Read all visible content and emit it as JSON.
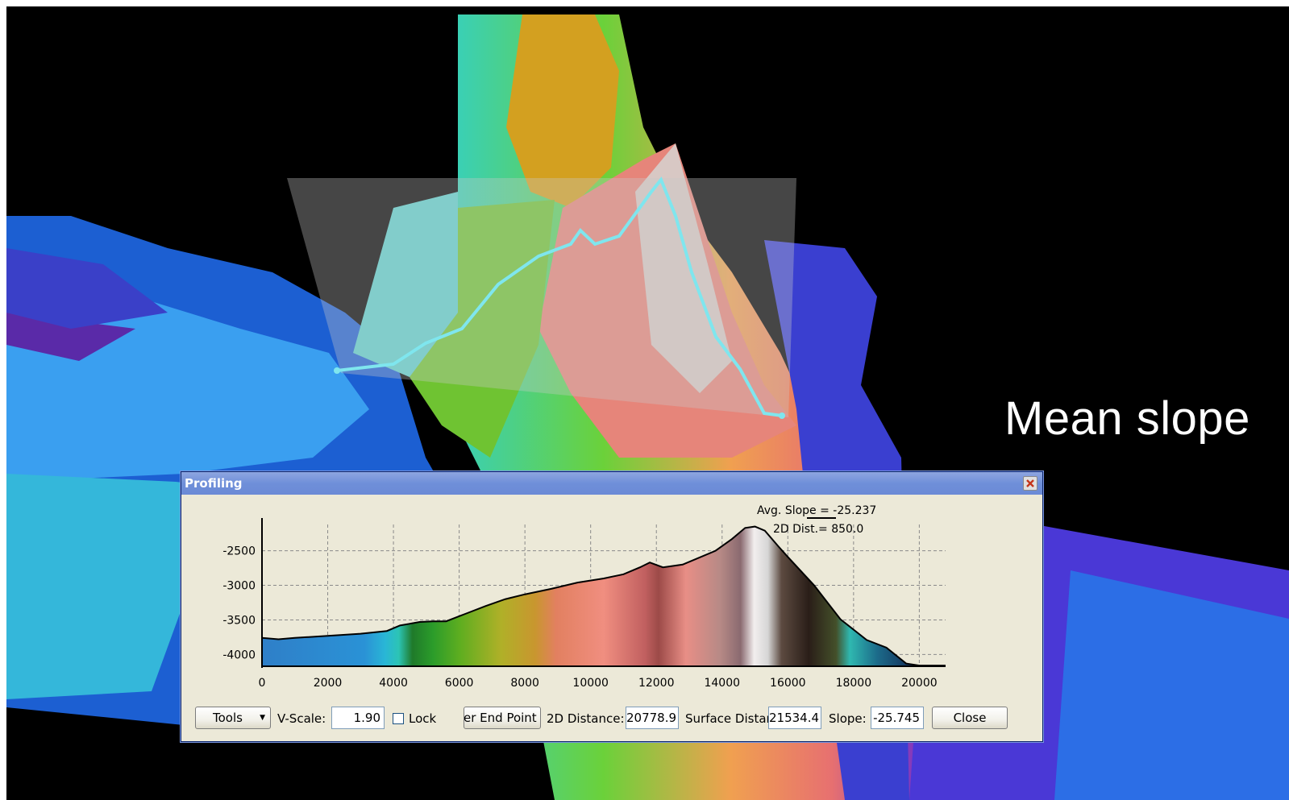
{
  "slide": {
    "caption": "Mean slope"
  },
  "dialog": {
    "title": "Profiling",
    "close_icon": "close-icon"
  },
  "profile_chart": {
    "annotation_avg_slope": "Avg. Slope = -25.237",
    "annotation_2d_dist": "2D Dist.= 850.0",
    "y_ticks": [
      "-2500",
      "-3000",
      "-3500",
      "-4000"
    ],
    "x_ticks": [
      "0",
      "2000",
      "4000",
      "6000",
      "8000",
      "10000",
      "12000",
      "14000",
      "16000",
      "18000",
      "20000"
    ]
  },
  "chart_data": {
    "type": "area",
    "title": "",
    "xlabel": "",
    "ylabel": "",
    "xlim": [
      0,
      20800
    ],
    "ylim": [
      -4170,
      -2120
    ],
    "grid": true,
    "series": [
      {
        "x": [
          0,
          500,
          1000,
          2000,
          3000,
          3800,
          4200,
          4800,
          5200,
          5600,
          6200,
          6800,
          7400,
          8000,
          8800,
          9600,
          10400,
          11000,
          11500,
          11800,
          12200,
          12800,
          13200,
          13800,
          14300,
          14700,
          15000,
          15300,
          15700,
          16000,
          16800,
          17600,
          18400,
          19000,
          19600,
          20000,
          20800
        ],
        "y": [
          -3760,
          -3780,
          -3760,
          -3730,
          -3700,
          -3660,
          -3580,
          -3530,
          -3520,
          -3520,
          -3410,
          -3300,
          -3200,
          -3130,
          -3050,
          -2960,
          -2900,
          -2840,
          -2740,
          -2670,
          -2740,
          -2700,
          -2620,
          -2500,
          -2330,
          -2170,
          -2150,
          -2210,
          -2430,
          -2590,
          -3000,
          -3490,
          -3790,
          -3900,
          -4130,
          -4160,
          -4160
        ]
      }
    ]
  },
  "toolbar": {
    "tools_label": "Tools",
    "tools_arrow_icon": "dropdown-arrow-icon",
    "vscale_label": "V-Scale:",
    "vscale_value": "1.90",
    "lock_label": "Lock",
    "endpoint_label": "er End Point",
    "dist2d_label": "2D Distance:",
    "dist2d_value": "20778.9",
    "surface_label": "Surface Distar",
    "surface_value": "21534.4",
    "slope_label": "Slope:",
    "slope_value": "-25.745",
    "close_label": "Close"
  }
}
